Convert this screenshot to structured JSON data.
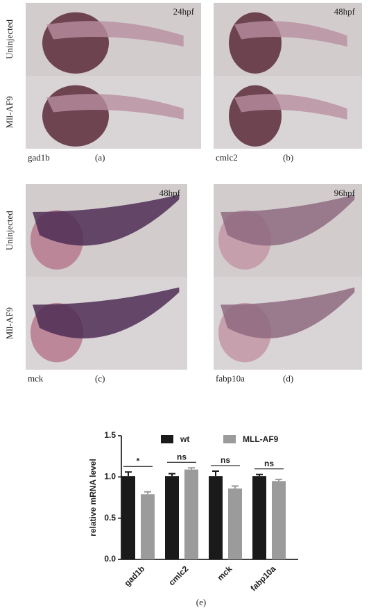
{
  "panels": [
    {
      "time": "24hpf",
      "rows": [
        "Uninjected",
        "Mll-AF9"
      ],
      "gene": "gad1b",
      "letter": "(a)"
    },
    {
      "time": "48hpf",
      "gene": "cmlc2",
      "letter": "(b)"
    },
    {
      "time": "48hpf",
      "rows": [
        "Uninjected",
        "Mll-AF9"
      ],
      "gene": "mck",
      "letter": "(c)"
    },
    {
      "time": "96hpf",
      "gene": "fabp10a",
      "letter": "(d)"
    }
  ],
  "chart_data": {
    "type": "bar",
    "ylabel": "relative mRNA level",
    "caption": "(e)",
    "categories": [
      "gad1b",
      "cmlc2",
      "mck",
      "fabp10a"
    ],
    "series": [
      {
        "name": "wt",
        "color": "#1a1a1a",
        "values": [
          1.01,
          1.01,
          1.01,
          1.01
        ],
        "errors": [
          0.05,
          0.03,
          0.06,
          0.02
        ]
      },
      {
        "name": "MLL-AF9",
        "color": "#9b9b9b",
        "values": [
          0.79,
          1.09,
          0.86,
          0.95
        ],
        "errors": [
          0.03,
          0.02,
          0.03,
          0.02
        ]
      }
    ],
    "annotations": [
      "*",
      "ns",
      "ns",
      "ns"
    ],
    "ylim": [
      0,
      1.5
    ],
    "yticks": [
      {
        "value": 0,
        "label": "0.0"
      },
      {
        "value": 0.5,
        "label": "0.5"
      },
      {
        "value": 1,
        "label": "1.0"
      },
      {
        "value": 1.5,
        "label": "1.5"
      }
    ]
  }
}
